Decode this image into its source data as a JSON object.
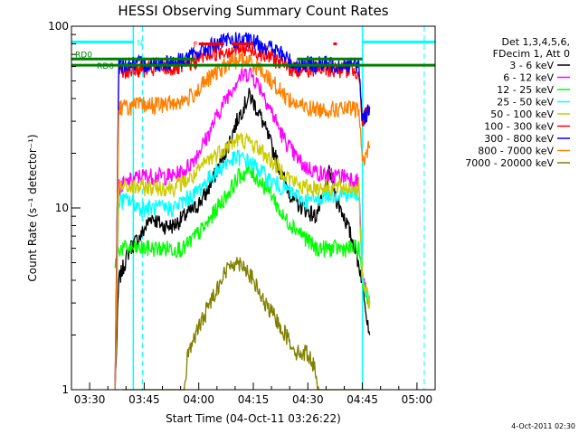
{
  "chart_data": {
    "type": "line",
    "title": "HESSI Observing Summary Count Rates",
    "xlabel": "Start Time (04-Oct-11 03:26:22)",
    "ylabel": "Count Rate (s⁻¹ detector⁻¹)",
    "x_ticks": [
      "03:30",
      "03:45",
      "04:00",
      "04:15",
      "04:30",
      "04:45",
      "05:00"
    ],
    "x_tick_minutes": [
      210,
      225,
      240,
      255,
      270,
      285,
      300
    ],
    "xlim_minutes": [
      205,
      305
    ],
    "y_scale": "log",
    "ylim": [
      1,
      100
    ],
    "y_ticks": [
      "1",
      "10",
      "100"
    ],
    "legend_header": [
      "Det 1,3,4,5,6,",
      "FDecim 1, Att 0"
    ],
    "legend_position": "right",
    "timestamp": "4-Oct-2011 02:30",
    "annotations": [
      {
        "text": "N",
        "color": "#00ffff"
      },
      {
        "text": "F",
        "color": "#ff0000"
      },
      {
        "text": "RD0",
        "color": "#008000"
      },
      {
        "text": "RD6",
        "color": "#008000"
      }
    ],
    "night_intervals_minutes": [
      [
        205,
        222
      ],
      [
        285,
        305
      ]
    ],
    "saa_markers_minutes": [
      224.5,
      302
    ],
    "flag_segments": [
      {
        "name": "N",
        "color": "#00ffff",
        "y": 82,
        "intervals": [
          [
            205,
            222
          ],
          [
            285,
            305
          ]
        ]
      },
      {
        "name": "F",
        "color": "#ff0000",
        "y": 80,
        "intervals": [
          [
            240,
            247
          ],
          [
            249,
            255
          ],
          [
            277,
            278
          ]
        ]
      },
      {
        "name": "RD0",
        "color": "#008000",
        "y": 66,
        "intervals": [
          [
            205,
            239
          ],
          [
            267,
            285
          ]
        ]
      },
      {
        "name": "RD6",
        "color": "#008000",
        "y": 61,
        "intervals": [
          [
            205,
            305
          ]
        ]
      }
    ],
    "series": [
      {
        "name": "3 - 6 keV",
        "color": "#000000",
        "x": [
          217,
          218,
          221,
          224,
          227,
          230,
          233,
          236,
          239,
          242,
          245,
          248,
          251,
          254,
          257,
          260,
          263,
          266,
          269,
          272,
          274,
          276,
          278,
          280,
          283,
          285,
          287
        ],
        "y": [
          1,
          4,
          6,
          7,
          9,
          8,
          8,
          9,
          10,
          12,
          16,
          22,
          32,
          42,
          32,
          22,
          15,
          11,
          10,
          9,
          11,
          16,
          11,
          9,
          6,
          4,
          2
        ]
      },
      {
        "name": "6 - 12 keV",
        "color": "#ff00ff",
        "x": [
          217,
          218,
          221,
          224,
          227,
          230,
          233,
          236,
          239,
          242,
          245,
          248,
          251,
          254,
          257,
          260,
          263,
          266,
          269,
          272,
          275,
          278,
          281,
          284,
          285,
          287
        ],
        "y": [
          1,
          13,
          14,
          15,
          15,
          15,
          15,
          16,
          19,
          24,
          32,
          42,
          52,
          56,
          46,
          34,
          25,
          20,
          17,
          16,
          15,
          15,
          15,
          14,
          4,
          3
        ]
      },
      {
        "name": "12 - 25 keV",
        "color": "#00ff00",
        "x": [
          217,
          218,
          221,
          224,
          227,
          230,
          233,
          236,
          239,
          242,
          245,
          248,
          251,
          254,
          257,
          260,
          263,
          266,
          269,
          272,
          275,
          278,
          281,
          284,
          285,
          287
        ],
        "y": [
          5,
          6,
          6,
          6,
          6,
          6,
          6,
          6,
          7,
          8,
          10,
          12,
          15,
          16,
          14,
          12,
          9,
          8,
          7,
          6,
          6,
          6,
          6,
          6,
          4,
          3
        ]
      },
      {
        "name": "25 - 50 keV",
        "color": "#00ffff",
        "x": [
          217,
          218,
          221,
          224,
          227,
          230,
          233,
          236,
          239,
          242,
          245,
          248,
          251,
          254,
          257,
          260,
          263,
          266,
          269,
          272,
          275,
          278,
          281,
          284,
          285,
          287
        ],
        "y": [
          1,
          11,
          11,
          10,
          10,
          10,
          10,
          11,
          12,
          14,
          16,
          18,
          19,
          18,
          16,
          14,
          13,
          12,
          11,
          11,
          12,
          12,
          12,
          12,
          4,
          3
        ]
      },
      {
        "name": "50 - 100 keV",
        "color": "#cccc00",
        "x": [
          217,
          218,
          221,
          224,
          227,
          230,
          233,
          236,
          239,
          242,
          245,
          248,
          251,
          254,
          257,
          260,
          263,
          266,
          269,
          272,
          275,
          278,
          281,
          284,
          285,
          287
        ],
        "y": [
          1,
          13,
          13,
          13,
          13,
          13,
          13,
          14,
          15,
          18,
          20,
          22,
          24,
          23,
          21,
          18,
          16,
          14,
          13,
          13,
          13,
          13,
          13,
          13,
          4,
          3
        ]
      },
      {
        "name": "100 - 300 keV",
        "color": "#ff0000",
        "x": [
          217,
          218,
          221,
          224,
          227,
          230,
          233,
          236,
          239,
          242,
          245,
          248,
          251,
          254,
          257,
          260,
          263,
          266,
          269,
          272,
          275,
          278,
          281,
          284,
          285,
          287
        ],
        "y": [
          1,
          57,
          58,
          58,
          58,
          59,
          59,
          60,
          65,
          70,
          72,
          74,
          75,
          74,
          72,
          68,
          62,
          58,
          58,
          58,
          58,
          58,
          58,
          57,
          30,
          35
        ]
      },
      {
        "name": "300 - 800 keV",
        "color": "#0000ff",
        "x": [
          217,
          218,
          221,
          224,
          227,
          230,
          233,
          236,
          239,
          242,
          245,
          248,
          251,
          254,
          257,
          260,
          263,
          266,
          269,
          272,
          275,
          278,
          281,
          284,
          285,
          287
        ],
        "y": [
          1,
          61,
          62,
          62,
          62,
          63,
          64,
          66,
          70,
          76,
          80,
          83,
          84,
          83,
          80,
          76,
          70,
          62,
          62,
          62,
          62,
          62,
          62,
          61,
          30,
          36
        ]
      },
      {
        "name": "800 - 7000 keV",
        "color": "#ff8000",
        "x": [
          217,
          218,
          221,
          224,
          227,
          230,
          233,
          236,
          239,
          242,
          245,
          248,
          251,
          254,
          257,
          260,
          263,
          266,
          269,
          272,
          275,
          278,
          281,
          284,
          285,
          287
        ],
        "y": [
          1,
          36,
          36,
          37,
          37,
          37,
          38,
          39,
          43,
          50,
          56,
          62,
          66,
          64,
          58,
          50,
          43,
          38,
          36,
          35,
          35,
          35,
          35,
          35,
          18,
          22
        ]
      },
      {
        "name": "7000 - 20000 keV",
        "color": "#808000",
        "x": [
          219,
          236,
          237,
          240,
          243,
          246,
          249,
          252,
          255,
          258,
          261,
          264,
          267,
          270,
          272,
          273,
          287
        ],
        "y": [
          1,
          1,
          1.6,
          2.2,
          3,
          4,
          5,
          5,
          4,
          3,
          2.5,
          2,
          1.6,
          1.6,
          1.3,
          1,
          1
        ]
      }
    ]
  }
}
